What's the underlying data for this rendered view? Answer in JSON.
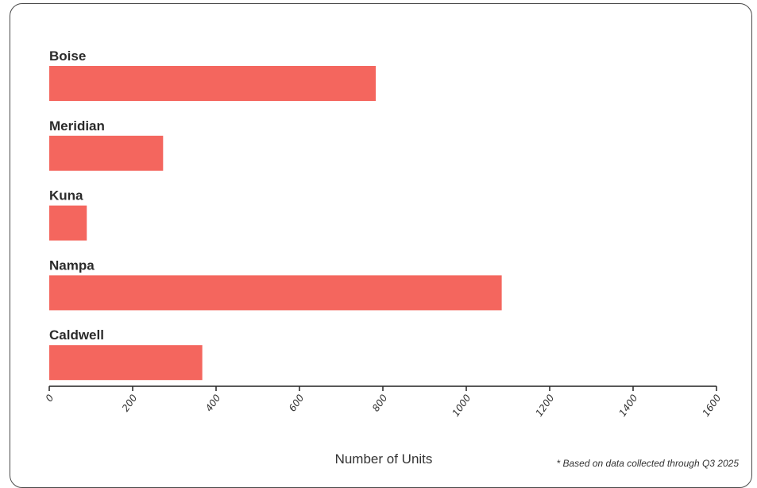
{
  "chart_data": {
    "type": "bar",
    "orientation": "horizontal",
    "categories": [
      "Boise",
      "Meridian",
      "Kuna",
      "Nampa",
      "Caldwell"
    ],
    "values": [
      783,
      273,
      90,
      1085,
      367
    ],
    "xlabel": "Number of Units",
    "ylabel": "",
    "title": "",
    "xlim": [
      0,
      1600
    ],
    "xticks": [
      "0",
      "200",
      "400",
      "600",
      "800",
      "1000",
      "1200",
      "1400",
      "1600"
    ],
    "grid": false,
    "legend": "none",
    "bar_color": "#f4665e",
    "footnote": "* Based on data collected through Q3 2025"
  }
}
